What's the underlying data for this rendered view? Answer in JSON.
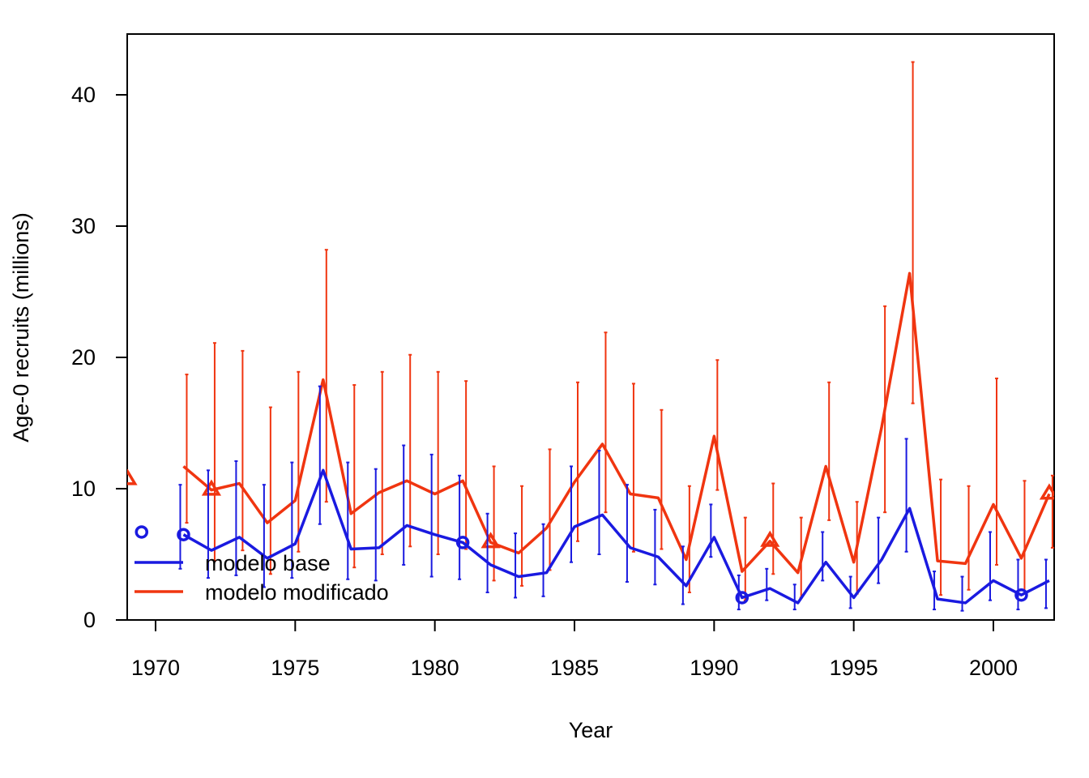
{
  "chart_data": {
    "type": "line",
    "xlabel": "Year",
    "ylabel": "Age-0 recruits (millions)",
    "xlim": [
      1969,
      2002
    ],
    "ylim": [
      0,
      44
    ],
    "x_ticks": [
      1970,
      1975,
      1980,
      1985,
      1990,
      1995,
      2000
    ],
    "x_tick_labels": [
      "1970",
      "1975",
      "1980",
      "1985",
      "1990",
      "1995",
      "2000"
    ],
    "y_ticks": [
      0,
      10,
      20,
      30,
      40
    ],
    "y_tick_labels": [
      "0",
      "10",
      "20",
      "30",
      "40"
    ],
    "legend_placement": "bottom-left",
    "legend": [
      "modelo base",
      "modelo modificado"
    ],
    "series": [
      {
        "name": "modelo base",
        "color": "#1a1ae0",
        "x": [
          1971,
          1972,
          1973,
          1974,
          1975,
          1976,
          1977,
          1978,
          1979,
          1980,
          1981,
          1982,
          1983,
          1984,
          1985,
          1986,
          1987,
          1988,
          1989,
          1990,
          1991,
          1992,
          1993,
          1994,
          1995,
          1996,
          1997,
          1998,
          1999,
          2000,
          2001,
          2002
        ],
        "y": [
          6.5,
          5.3,
          6.3,
          4.7,
          5.8,
          11.4,
          5.4,
          5.5,
          7.2,
          6.5,
          5.9,
          4.2,
          3.3,
          3.6,
          7.1,
          8.0,
          5.5,
          4.8,
          2.6,
          6.3,
          1.7,
          2.4,
          1.3,
          4.4,
          1.7,
          4.6,
          8.5,
          1.6,
          1.3,
          3.0,
          1.9,
          3.0
        ],
        "lower": [
          3.9,
          3.2,
          3.4,
          2.5,
          3.2,
          7.3,
          3.1,
          3.0,
          4.2,
          3.3,
          3.1,
          2.1,
          1.7,
          1.8,
          4.4,
          5.0,
          2.9,
          2.7,
          1.2,
          4.8,
          0.8,
          1.5,
          0.8,
          3.0,
          0.9,
          2.8,
          5.2,
          0.8,
          0.7,
          1.5,
          0.8,
          0.9
        ],
        "upper": [
          10.3,
          11.4,
          12.1,
          10.3,
          12.0,
          17.8,
          12.0,
          11.5,
          13.3,
          12.6,
          11.0,
          8.1,
          6.6,
          7.3,
          11.7,
          12.9,
          10.3,
          8.4,
          5.6,
          8.8,
          3.4,
          3.9,
          2.7,
          6.7,
          3.3,
          7.8,
          13.8,
          3.7,
          3.3,
          6.7,
          4.6,
          4.6
        ],
        "markers": [
          {
            "x": 1969.5,
            "y": 6.7
          },
          {
            "x": 1971,
            "y": 6.5
          },
          {
            "x": 1981,
            "y": 5.9
          },
          {
            "x": 1991,
            "y": 1.7
          },
          {
            "x": 2001,
            "y": 1.9
          }
        ],
        "marker_shape": "circle"
      },
      {
        "name": "modelo modificado",
        "color": "#f03510",
        "x": [
          1971,
          1972,
          1973,
          1974,
          1975,
          1976,
          1977,
          1978,
          1979,
          1980,
          1981,
          1982,
          1983,
          1984,
          1985,
          1986,
          1987,
          1988,
          1989,
          1990,
          1991,
          1992,
          1993,
          1994,
          1995,
          1996,
          1997,
          1998,
          1999,
          2000,
          2001,
          2002
        ],
        "y": [
          11.7,
          9.9,
          10.4,
          7.4,
          9.1,
          18.3,
          8.1,
          9.7,
          10.6,
          9.6,
          10.6,
          5.9,
          5.1,
          7.0,
          10.5,
          13.4,
          9.6,
          9.3,
          4.6,
          14.0,
          3.7,
          6.0,
          3.6,
          11.7,
          4.4,
          14.7,
          26.4,
          4.5,
          4.3,
          8.8,
          4.7,
          9.6
        ],
        "lower": [
          7.4,
          4.5,
          5.3,
          3.5,
          5.2,
          9.0,
          4.0,
          5.0,
          5.6,
          5.0,
          5.4,
          3.0,
          2.6,
          3.8,
          6.0,
          8.2,
          5.2,
          5.4,
          2.1,
          9.9,
          1.5,
          3.5,
          1.7,
          7.6,
          2.0,
          8.2,
          16.5,
          1.9,
          2.3,
          4.2,
          2.0,
          5.5
        ],
        "upper": [
          18.7,
          21.1,
          20.5,
          16.2,
          18.9,
          28.2,
          17.9,
          18.9,
          20.2,
          18.9,
          18.2,
          11.7,
          10.2,
          13.0,
          18.1,
          21.9,
          18.0,
          16.0,
          10.2,
          19.8,
          7.8,
          10.4,
          7.8,
          18.1,
          9.0,
          23.9,
          42.5,
          10.7,
          10.2,
          18.4,
          10.6,
          11.0
        ],
        "markers": [
          {
            "x": 1969,
            "y": 10.7
          },
          {
            "x": 1972,
            "y": 9.9
          },
          {
            "x": 1982,
            "y": 5.9
          },
          {
            "x": 1992,
            "y": 6.0
          },
          {
            "x": 2002,
            "y": 9.6
          }
        ],
        "marker_shape": "triangle"
      }
    ]
  }
}
